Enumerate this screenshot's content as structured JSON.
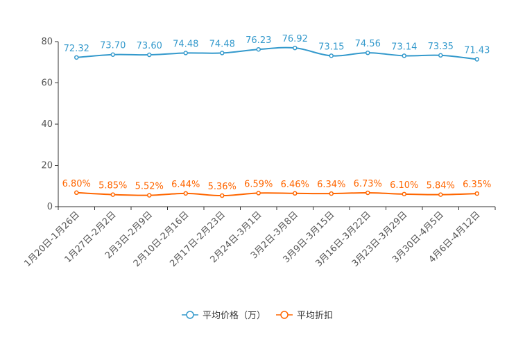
{
  "chart_data": {
    "type": "line",
    "title": "",
    "xlabel": "",
    "ylabel": "",
    "ylim": [
      0,
      80
    ],
    "yticks": [
      0,
      20,
      40,
      60,
      80
    ],
    "categories": [
      "1月20日-1月26日",
      "1月27日-2月2日",
      "2月3日-2月9日",
      "2月10日-2月16日",
      "2月17日-2月23日",
      "2月24日-3月1日",
      "3月2日-3月8日",
      "3月9日-3月15日",
      "3月16日-3月22日",
      "3月23日-3月29日",
      "3月30日-4月5日",
      "4月6日-4月12日"
    ],
    "series": [
      {
        "name": "平均价格（万）",
        "color": "#3399cc",
        "values": [
          72.32,
          73.7,
          73.6,
          74.48,
          74.48,
          76.23,
          76.92,
          73.15,
          74.56,
          73.14,
          73.35,
          71.43
        ],
        "labels": [
          "72.32",
          "73.70",
          "73.60",
          "74.48",
          "74.48",
          "76.23",
          "76.92",
          "73.15",
          "74.56",
          "73.14",
          "73.35",
          "71.43"
        ]
      },
      {
        "name": "平均折扣",
        "color": "#ff6600",
        "values": [
          6.8,
          5.85,
          5.52,
          6.44,
          5.36,
          6.59,
          6.46,
          6.34,
          6.73,
          6.1,
          5.84,
          6.35
        ],
        "labels": [
          "6.80%",
          "5.85%",
          "5.52%",
          "6.44%",
          "5.36%",
          "6.59%",
          "6.46%",
          "6.34%",
          "6.73%",
          "6.10%",
          "5.84%",
          "6.35%"
        ]
      }
    ],
    "legend": "bottom-center",
    "grid": false
  }
}
